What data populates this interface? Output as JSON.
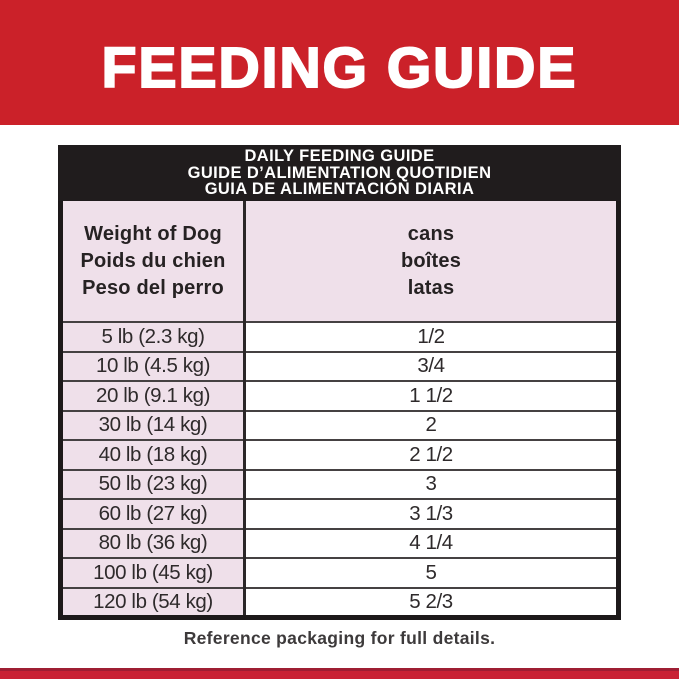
{
  "banner": {
    "title": "FEEDING GUIDE"
  },
  "table": {
    "band": {
      "line1": "DAILY FEEDING GUIDE",
      "line2": "GUIDE D’ALIMENTATION QUOTIDIEN",
      "line3": "GUIA DE ALIMENTACIÓN DIARIA"
    },
    "columns": {
      "weight": {
        "en": "Weight of Dog",
        "fr": "Poids du chien",
        "es": "Peso del perro"
      },
      "cans": {
        "en": "cans",
        "fr": "boîtes",
        "es": "latas"
      }
    },
    "rows": [
      {
        "weight": "5 lb (2.3 kg)",
        "cans": "1/2"
      },
      {
        "weight": "10 lb (4.5 kg)",
        "cans": "3/4"
      },
      {
        "weight": "20 lb (9.1 kg)",
        "cans": "1 1/2"
      },
      {
        "weight": "30 lb (14 kg)",
        "cans": "2"
      },
      {
        "weight": "40 lb (18 kg)",
        "cans": "2 1/2"
      },
      {
        "weight": "50 lb (23 kg)",
        "cans": "3"
      },
      {
        "weight": "60 lb (27 kg)",
        "cans": "3 1/3"
      },
      {
        "weight": "80 lb (36 kg)",
        "cans": "4 1/4"
      },
      {
        "weight": "100 lb (45 kg)",
        "cans": "5"
      },
      {
        "weight": "120 lb (54 kg)",
        "cans": "5 2/3"
      }
    ]
  },
  "footer": {
    "note": "Reference packaging for full details."
  },
  "colors": {
    "brand_red": "#CB2129",
    "bottom_strip_red": "#C92134",
    "bottom_strip_edge": "#9E1E33",
    "cell_pink": "#EFE0EA",
    "band_black": "#201C1D",
    "text_dark": "#2E2A2B"
  }
}
